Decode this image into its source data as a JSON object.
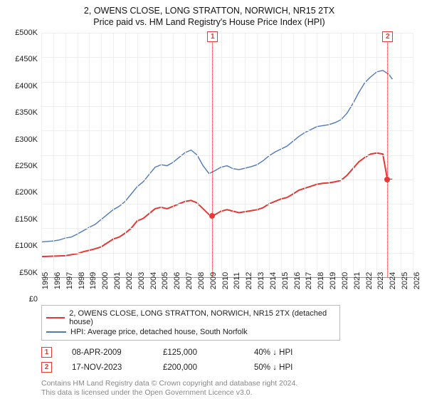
{
  "title": "2, OWENS CLOSE, LONG STRATTON, NORWICH, NR15 2TX",
  "subtitle": "Price paid vs. HM Land Registry's House Price Index (HPI)",
  "chart": {
    "type": "line",
    "background_color": "#ffffff",
    "grid_color": "#eeeeee",
    "axis_color": "#999999",
    "ytick_fontsize": 11,
    "xtick_fontsize": 11,
    "xtick_rotation": -90,
    "ylim": [
      0,
      500000
    ],
    "ytick_step": 50000,
    "yticks": [
      "£0",
      "£50K",
      "£100K",
      "£150K",
      "£200K",
      "£250K",
      "£300K",
      "£350K",
      "£400K",
      "£450K",
      "£500K"
    ],
    "xlim": [
      1995,
      2026
    ],
    "xticks": [
      1995,
      1996,
      1997,
      1998,
      1999,
      2000,
      2001,
      2002,
      2003,
      2004,
      2005,
      2006,
      2007,
      2008,
      2009,
      2010,
      2011,
      2012,
      2013,
      2014,
      2015,
      2016,
      2017,
      2018,
      2019,
      2020,
      2021,
      2022,
      2023,
      2024,
      2025,
      2026
    ],
    "reference_lines": [
      {
        "x": 2009.27,
        "label": "1",
        "line_color": "#e53935",
        "line_style": "dotted"
      },
      {
        "x": 2023.88,
        "label": "2",
        "line_color": "#e53935",
        "line_style": "dotted"
      }
    ],
    "series": [
      {
        "id": "sale_price_indexed",
        "label": "2, OWENS CLOSE, LONG STRATTON, NORWICH, NR15 2TX (detached house)",
        "color": "#e53935",
        "line_width": 2,
        "points": [
          [
            1995,
            42000
          ],
          [
            1996,
            43000
          ],
          [
            1997,
            44000
          ],
          [
            1998,
            48000
          ],
          [
            1998.5,
            52000
          ],
          [
            1999,
            55000
          ],
          [
            1999.5,
            58000
          ],
          [
            2000,
            62000
          ],
          [
            2000.5,
            70000
          ],
          [
            2001,
            78000
          ],
          [
            2001.5,
            82000
          ],
          [
            2002,
            90000
          ],
          [
            2002.5,
            100000
          ],
          [
            2003,
            115000
          ],
          [
            2003.5,
            120000
          ],
          [
            2004,
            130000
          ],
          [
            2004.5,
            140000
          ],
          [
            2005,
            143000
          ],
          [
            2005.5,
            140000
          ],
          [
            2006,
            145000
          ],
          [
            2006.5,
            150000
          ],
          [
            2007,
            155000
          ],
          [
            2007.5,
            157000
          ],
          [
            2008,
            152000
          ],
          [
            2008.5,
            140000
          ],
          [
            2009,
            128000
          ],
          [
            2009.27,
            125000
          ],
          [
            2009.5,
            128000
          ],
          [
            2010,
            135000
          ],
          [
            2010.5,
            138000
          ],
          [
            2011,
            135000
          ],
          [
            2011.5,
            132000
          ],
          [
            2012,
            134000
          ],
          [
            2012.5,
            136000
          ],
          [
            2013,
            138000
          ],
          [
            2013.5,
            142000
          ],
          [
            2014,
            150000
          ],
          [
            2014.5,
            155000
          ],
          [
            2015,
            160000
          ],
          [
            2015.5,
            163000
          ],
          [
            2016,
            170000
          ],
          [
            2016.5,
            178000
          ],
          [
            2017,
            182000
          ],
          [
            2017.5,
            186000
          ],
          [
            2018,
            190000
          ],
          [
            2018.5,
            192000
          ],
          [
            2019,
            193000
          ],
          [
            2019.5,
            195000
          ],
          [
            2020,
            198000
          ],
          [
            2020.5,
            208000
          ],
          [
            2021,
            222000
          ],
          [
            2021.5,
            236000
          ],
          [
            2022,
            245000
          ],
          [
            2022.5,
            252000
          ],
          [
            2023,
            254000
          ],
          [
            2023.5,
            252000
          ],
          [
            2023.88,
            200000
          ],
          [
            2024.3,
            200000
          ]
        ],
        "markers": [
          {
            "x": 2009.27,
            "y": 125000
          },
          {
            "x": 2023.88,
            "y": 200000
          }
        ]
      },
      {
        "id": "hpi",
        "label": "HPI: Average price, detached house, South Norfolk",
        "color": "#4f79b8",
        "line_width": 1.4,
        "points": [
          [
            1995,
            72000
          ],
          [
            1996,
            74000
          ],
          [
            1996.5,
            76000
          ],
          [
            1997,
            80000
          ],
          [
            1997.5,
            82000
          ],
          [
            1998,
            88000
          ],
          [
            1998.5,
            95000
          ],
          [
            1999,
            102000
          ],
          [
            1999.5,
            108000
          ],
          [
            2000,
            118000
          ],
          [
            2000.5,
            128000
          ],
          [
            2001,
            138000
          ],
          [
            2001.5,
            145000
          ],
          [
            2002,
            155000
          ],
          [
            2002.5,
            170000
          ],
          [
            2003,
            185000
          ],
          [
            2003.5,
            195000
          ],
          [
            2004,
            210000
          ],
          [
            2004.5,
            225000
          ],
          [
            2005,
            230000
          ],
          [
            2005.5,
            228000
          ],
          [
            2006,
            235000
          ],
          [
            2006.5,
            245000
          ],
          [
            2007,
            255000
          ],
          [
            2007.5,
            260000
          ],
          [
            2008,
            250000
          ],
          [
            2008.5,
            228000
          ],
          [
            2009,
            212000
          ],
          [
            2009.5,
            218000
          ],
          [
            2010,
            225000
          ],
          [
            2010.5,
            228000
          ],
          [
            2011,
            222000
          ],
          [
            2011.5,
            220000
          ],
          [
            2012,
            223000
          ],
          [
            2012.5,
            226000
          ],
          [
            2013,
            230000
          ],
          [
            2013.5,
            238000
          ],
          [
            2014,
            248000
          ],
          [
            2014.5,
            256000
          ],
          [
            2015,
            262000
          ],
          [
            2015.5,
            268000
          ],
          [
            2016,
            278000
          ],
          [
            2016.5,
            288000
          ],
          [
            2017,
            296000
          ],
          [
            2017.5,
            302000
          ],
          [
            2018,
            308000
          ],
          [
            2018.5,
            310000
          ],
          [
            2019,
            312000
          ],
          [
            2019.5,
            316000
          ],
          [
            2020,
            322000
          ],
          [
            2020.5,
            335000
          ],
          [
            2021,
            355000
          ],
          [
            2021.5,
            378000
          ],
          [
            2022,
            398000
          ],
          [
            2022.5,
            410000
          ],
          [
            2023,
            420000
          ],
          [
            2023.5,
            423000
          ],
          [
            2024,
            415000
          ],
          [
            2024.3,
            405000
          ]
        ]
      }
    ]
  },
  "legend": {
    "series1_label": "2, OWENS CLOSE, LONG STRATTON, NORWICH, NR15 2TX (detached house)",
    "series1_color": "#e53935",
    "series2_label": "HPI: Average price, detached house, South Norfolk",
    "series2_color": "#4f79b8"
  },
  "sales": [
    {
      "marker": "1",
      "date": "08-APR-2009",
      "price": "£125,000",
      "delta": "40% ↓ HPI"
    },
    {
      "marker": "2",
      "date": "17-NOV-2023",
      "price": "£200,000",
      "delta": "50% ↓ HPI"
    }
  ],
  "footer": {
    "line1": "Contains HM Land Registry data © Crown copyright and database right 2024.",
    "line2": "This data is licensed under the Open Government Licence v3.0."
  }
}
